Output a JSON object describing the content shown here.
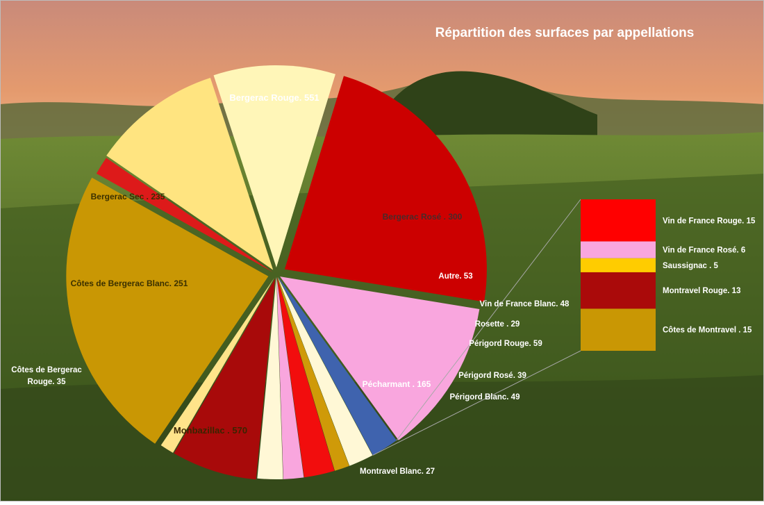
{
  "chart_data": {
    "type": "pie",
    "title": "Répartition des surfaces par appellations",
    "slices": [
      {
        "label": "Bergerac Rouge. 551",
        "name": "Bergerac Rouge",
        "value": 551,
        "color": "#cc0000"
      },
      {
        "label": "Bergerac Rosé . 300",
        "name": "Bergerac Rosé",
        "value": 300,
        "color": "#f9a6de"
      },
      {
        "label": "Autre. 53",
        "name": "Autre",
        "value": 53,
        "color": "#3f63ae"
      },
      {
        "label": "Vin de France Blanc. 48",
        "name": "Vin de France Blanc",
        "value": 48,
        "color": "#fff8d6"
      },
      {
        "label": "Rosette . 29",
        "name": "Rosette",
        "value": 29,
        "color": "#cf9a08"
      },
      {
        "label": "Périgord Rouge. 59",
        "name": "Périgord Rouge",
        "value": 59,
        "color": "#f20d0d"
      },
      {
        "label": "Périgord Rosé. 39",
        "name": "Périgord Rosé",
        "value": 39,
        "color": "#f9a6de"
      },
      {
        "label": "Périgord Blanc. 49",
        "name": "Périgord Blanc",
        "value": 49,
        "color": "#fff8d6"
      },
      {
        "label": "Pécharmant . 165",
        "name": "Pécharmant",
        "value": 165,
        "color": "#a80a0a"
      },
      {
        "label": "Montravel Blanc. 27",
        "name": "Montravel Blanc",
        "value": 27,
        "color": "#ffe48a"
      },
      {
        "label": "Monbazillac . 570",
        "name": "Monbazillac",
        "value": 570,
        "color": "#c99704"
      },
      {
        "label": "Côtes de Bergerac Rouge. 35",
        "name": "Côtes de Bergerac Rouge",
        "value": 35,
        "color": "#dd1a1a"
      },
      {
        "label": "Côtes de Bergerac Blanc. 251",
        "name": "Côtes de Bergerac Blanc",
        "value": 251,
        "color": "#ffe480"
      },
      {
        "label": "Bergerac Sec . 235",
        "name": "Bergerac Sec",
        "value": 235,
        "color": "#fff6b8"
      }
    ],
    "detail_breakdown": {
      "of": "Autre",
      "items": [
        {
          "label": "Vin de France Rouge. 15",
          "name": "Vin de France Rouge",
          "value": 15,
          "color": "#ff0000"
        },
        {
          "label": "Vin de France Rosé. 6",
          "name": "Vin de France Rosé",
          "value": 6,
          "color": "#f9a6de"
        },
        {
          "label": "Saussignac . 5",
          "name": "Saussignac",
          "value": 5,
          "color": "#ffcc00"
        },
        {
          "label": "Montravel Rouge. 13",
          "name": "Montravel Rouge",
          "value": 13,
          "color": "#aa0a0a"
        },
        {
          "label": "Côtes de Montravel . 15",
          "name": "Côtes de Montravel",
          "value": 15,
          "color": "#c99704"
        }
      ]
    }
  }
}
